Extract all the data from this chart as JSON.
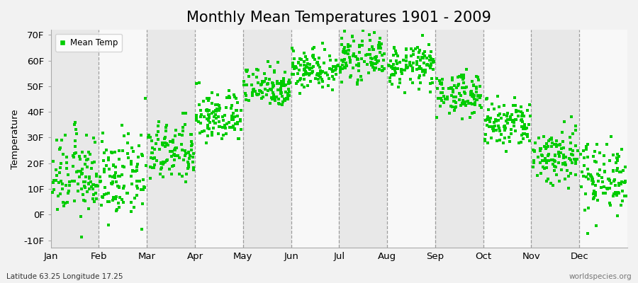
{
  "title": "Monthly Mean Temperatures 1901 - 2009",
  "ylabel": "Temperature",
  "xlabel_bottom_left": "Latitude 63.25 Longitude 17.25",
  "xlabel_bottom_right": "worldspecies.org",
  "ylim": [
    -13,
    72
  ],
  "yticks": [
    -10,
    0,
    10,
    20,
    30,
    40,
    50,
    60,
    70
  ],
  "ytick_labels": [
    "-10F",
    "0F",
    "10F",
    "20F",
    "30F",
    "40F",
    "50F",
    "60F",
    "70F"
  ],
  "months": [
    "Jan",
    "Feb",
    "Mar",
    "Apr",
    "May",
    "Jun",
    "Jul",
    "Aug",
    "Sep",
    "Oct",
    "Nov",
    "Dec"
  ],
  "dot_color": "#00cc00",
  "dot_size": 5,
  "background_color": "#f2f2f2",
  "band_colors": [
    "#e8e8e8",
    "#f8f8f8"
  ],
  "title_fontsize": 15,
  "axis_fontsize": 9.5,
  "n_years": 109,
  "monthly_means_F": [
    15,
    14,
    24,
    38,
    50,
    57,
    61,
    58,
    47,
    35,
    23,
    15
  ],
  "monthly_stds_F": [
    8,
    8,
    6,
    5,
    4,
    4,
    4,
    4,
    4,
    5,
    6,
    7
  ],
  "seed": 12345
}
